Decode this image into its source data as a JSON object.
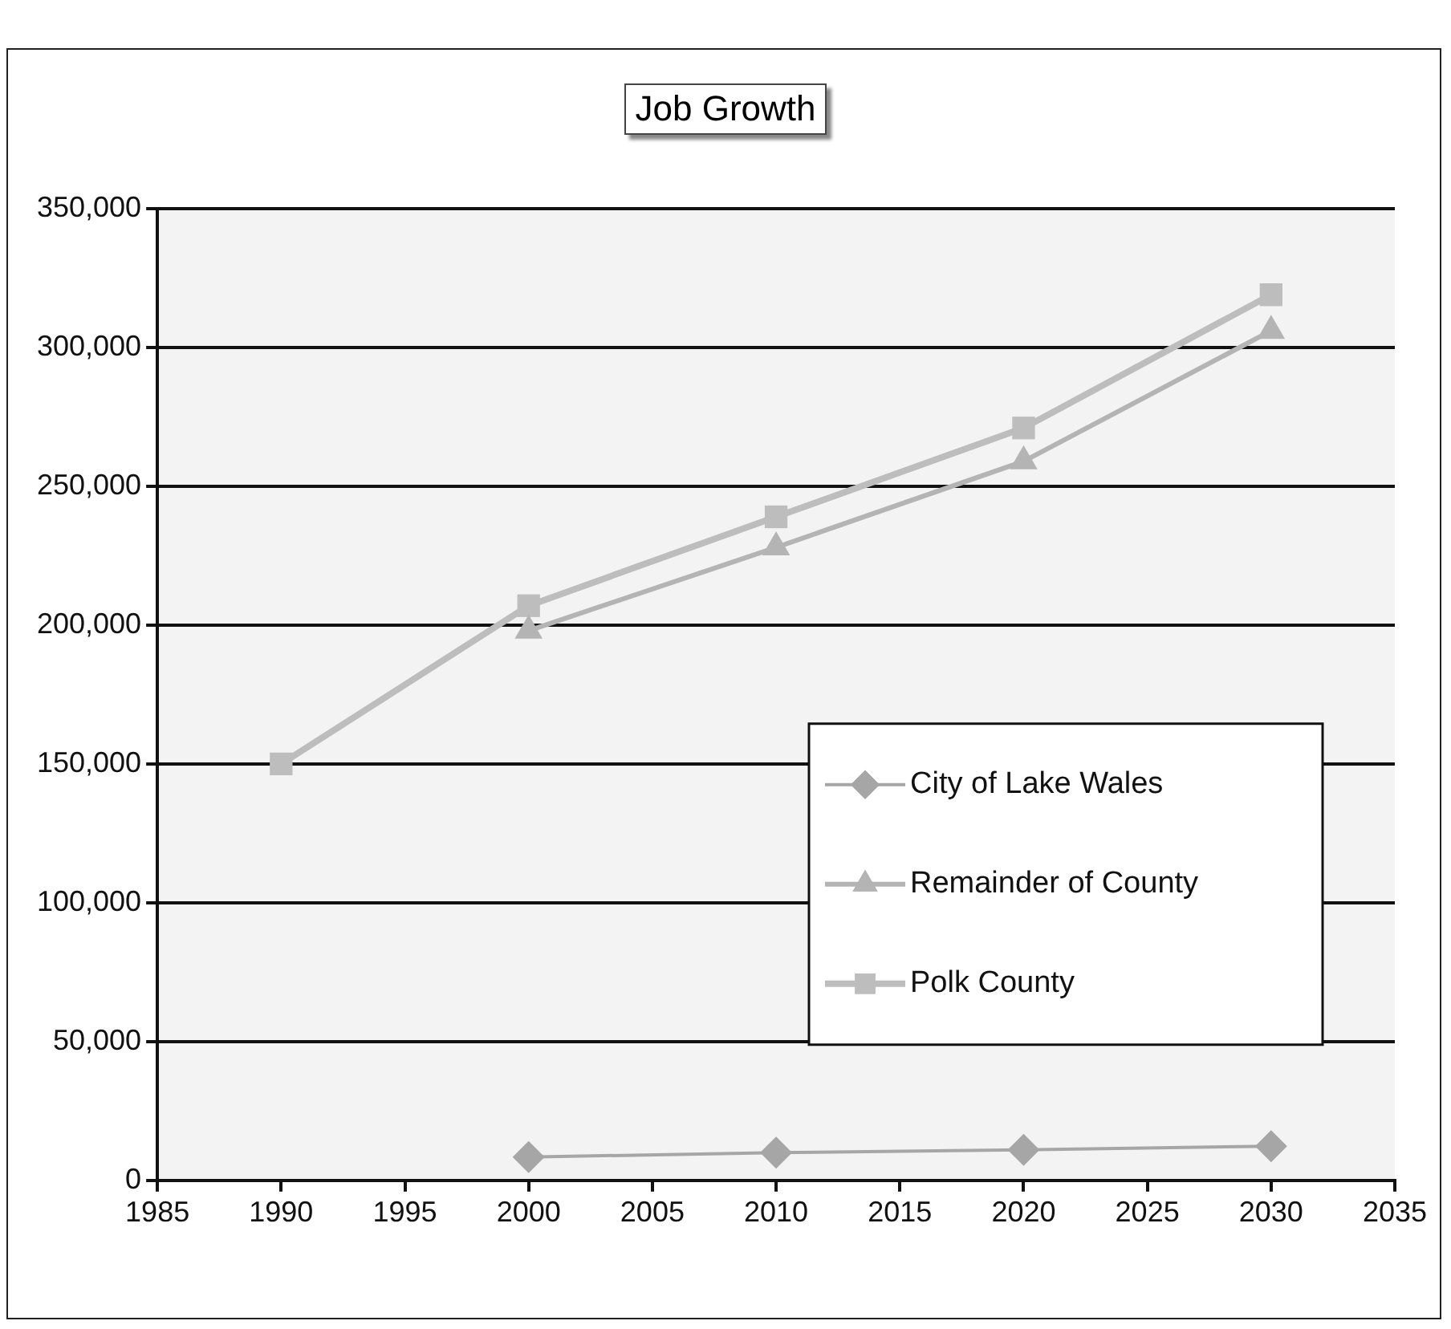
{
  "chart_data": {
    "type": "line",
    "title": "Job Growth",
    "x": [
      1990,
      2000,
      2010,
      2020,
      2030
    ],
    "series": [
      {
        "name": "City of Lake Wales",
        "color": "#a6a6a6",
        "marker": "diamond",
        "values": [
          null,
          8400,
          10000,
          11000,
          12300
        ]
      },
      {
        "name": "Remainder of County",
        "color": "#b4b4b4",
        "marker": "triangle",
        "values": [
          null,
          198000,
          228000,
          259000,
          306000
        ]
      },
      {
        "name": "Polk County",
        "color": "#bdbdbd",
        "marker": "square",
        "values": [
          150000,
          207000,
          239000,
          271000,
          319000
        ]
      }
    ],
    "xlim": [
      1985,
      2035
    ],
    "xticks": [
      1985,
      1990,
      1995,
      2000,
      2005,
      2010,
      2015,
      2020,
      2025,
      2030,
      2035
    ],
    "ylim": [
      0,
      350000
    ],
    "yticks": [
      0,
      {
        "value": 50000,
        "label": "50,000"
      },
      {
        "value": 100000,
        "label": "100,000"
      },
      {
        "value": 150000,
        "label": "150,000"
      },
      {
        "value": 200000,
        "label": "200,000"
      },
      {
        "value": 250000,
        "label": "250,000"
      },
      {
        "value": 300000,
        "label": "300,000"
      },
      {
        "value": 350000,
        "label": "350,000"
      }
    ],
    "grid": "y",
    "legend": "right",
    "line_style": "solid"
  }
}
